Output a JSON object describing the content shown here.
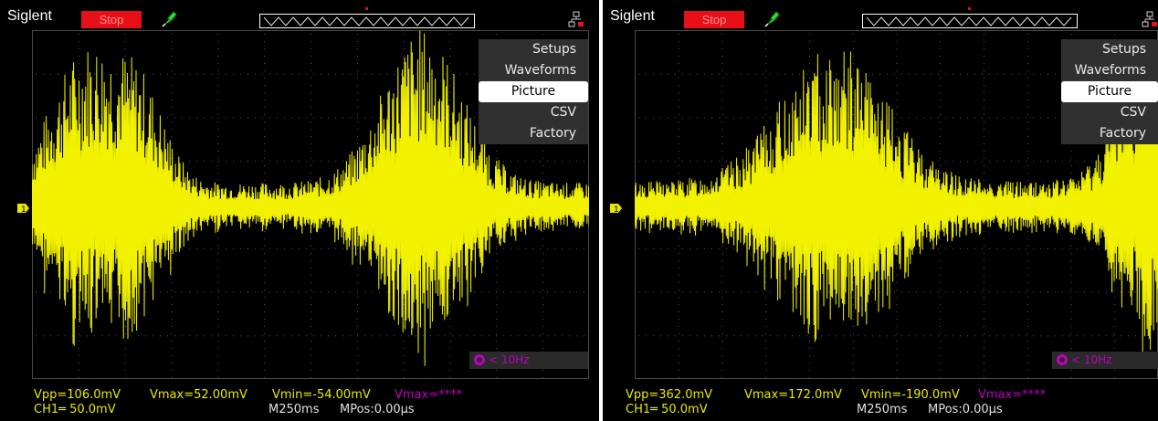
{
  "colors": {
    "trace": "#f2f200",
    "magenta": "#c000c0",
    "stop_bg": "#e81018",
    "grid": "#555555"
  },
  "icons": {
    "probe": "probe-icon",
    "network": "network-icon",
    "channel_marker": "channel-1-marker"
  },
  "scopes": [
    {
      "brand": "Siglent",
      "run_state": "Stop",
      "channel_marker_label": "1",
      "menu": {
        "items": [
          "Setups",
          "Waveforms",
          "Picture",
          "CSV",
          "Factory"
        ],
        "selected": "Picture"
      },
      "trigger_freq": "< 10Hz",
      "measurements": {
        "vpp": "Vpp=106.0mV",
        "vmax": "Vmax=52.00mV",
        "vmin": "Vmin=-54.00mV",
        "vmax_ch2": "Vmax=****"
      },
      "status": {
        "ch1_scale": "CH1═ 50.0mV",
        "timebase": "M250ms",
        "mpos": "MPos:0.00µs"
      }
    },
    {
      "brand": "Siglent",
      "run_state": "Stop",
      "channel_marker_label": "1",
      "menu": {
        "items": [
          "Setups",
          "Waveforms",
          "Picture",
          "CSV",
          "Factory"
        ],
        "selected": "Picture"
      },
      "trigger_freq": "< 10Hz",
      "measurements": {
        "vpp": "Vpp=362.0mV",
        "vmax": "Vmax=172.0mV",
        "vmin": "Vmin=-190.0mV",
        "vmax_ch2": "Vmax=****"
      },
      "status": {
        "ch1_scale": "CH1═ 50.0mV",
        "timebase": "M250ms",
        "mpos": "MPos:0.00µs"
      }
    }
  ]
}
